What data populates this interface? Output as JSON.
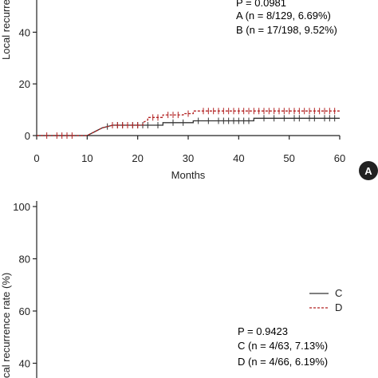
{
  "chart_data": [
    {
      "type": "line",
      "panel_label": "A",
      "xlabel": "Months",
      "ylabel": "Local recurren",
      "xlim": [
        0,
        60
      ],
      "ylim_visible": [
        0,
        50
      ],
      "x_ticks": [
        "0",
        "10",
        "20",
        "30",
        "40",
        "50",
        "60"
      ],
      "y_ticks": [
        "0",
        "20",
        "40"
      ],
      "annotations": [
        "P = 0.0981",
        "A (n = 8/129, 6.69%)",
        "B (n = 17/198, 9.52%)"
      ],
      "series": [
        {
          "name": "A",
          "color": "#333333",
          "style": "solid",
          "points": [
            [
              0,
              0
            ],
            [
              10,
              0
            ],
            [
              12,
              2
            ],
            [
              13,
              3
            ],
            [
              14,
              3.5
            ],
            [
              15,
              4
            ],
            [
              25,
              4
            ],
            [
              25,
              5
            ],
            [
              31,
              5
            ],
            [
              31,
              5.7
            ],
            [
              43,
              5.7
            ],
            [
              43,
              6.7
            ],
            [
              60,
              6.7
            ]
          ],
          "censored_x": [
            14,
            16,
            17,
            18,
            19,
            20,
            21,
            22,
            24,
            27,
            29,
            32,
            34,
            36,
            37,
            38,
            39,
            40,
            41,
            42,
            45,
            47,
            49,
            51,
            52,
            54,
            55,
            57,
            58,
            59
          ]
        },
        {
          "name": "B",
          "color": "#b22222",
          "style": "dashed",
          "points": [
            [
              0,
              0
            ],
            [
              10,
              0
            ],
            [
              12,
              2
            ],
            [
              13,
              3
            ],
            [
              14,
              3.5
            ],
            [
              15,
              4
            ],
            [
              21,
              4
            ],
            [
              21,
              5
            ],
            [
              22,
              6
            ],
            [
              22,
              7
            ],
            [
              25,
              7
            ],
            [
              25,
              8
            ],
            [
              29,
              8
            ],
            [
              29,
              8.5
            ],
            [
              31,
              8.5
            ],
            [
              31,
              9.5
            ],
            [
              60,
              9.5
            ]
          ],
          "censored_x": [
            2,
            4,
            5,
            6,
            7,
            15,
            16,
            17,
            18,
            19,
            20,
            23,
            24,
            26,
            27,
            28,
            30,
            33,
            34,
            35,
            36,
            37,
            38,
            39,
            40,
            41,
            42,
            43,
            44,
            45,
            46,
            47,
            48,
            49,
            50,
            51,
            52,
            53,
            54,
            55,
            56,
            57,
            58,
            59
          ]
        }
      ]
    },
    {
      "type": "line",
      "ylabel": "cal recurrence rate (%)",
      "ylim_visible": [
        38,
        100
      ],
      "y_ticks": [
        "100",
        "80",
        "60",
        "40"
      ],
      "legend": [
        {
          "name": "C",
          "color": "#333333",
          "style": "solid"
        },
        {
          "name": "D",
          "color": "#b22222",
          "style": "dashed"
        }
      ],
      "annotations": [
        "P = 0.9423",
        "C (n = 4/63, 7.13%)",
        "D (n = 4/66, 6.19%)"
      ],
      "series": []
    }
  ]
}
